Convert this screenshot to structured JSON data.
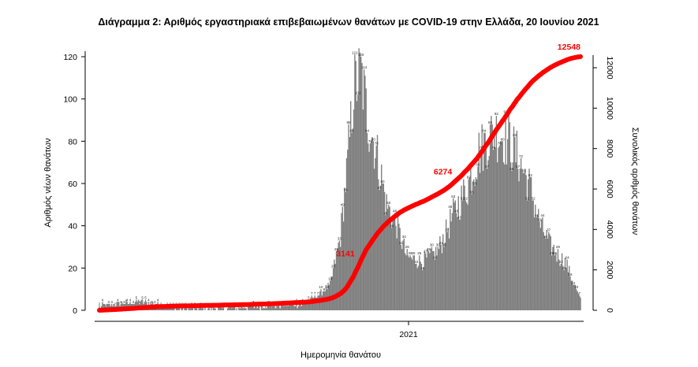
{
  "chart_data": {
    "type": "bar",
    "title": "Διάγραμμα 2: Αριθμός εργαστηριακά επιβεβαιωμένων θανάτων με COVID-19 στην Ελλάδα, 20 Ιουνίου 2021",
    "xlabel": "Ημερομηνία θανάτου",
    "ylabel_left": "Αριθμός νέων θανάτων",
    "ylabel_right": "Συνολικός αριθμός θανάτων",
    "x_tick_label": "2021",
    "ylim_left": [
      0,
      125
    ],
    "yticks_left": [
      "0",
      "20",
      "40",
      "60",
      "80",
      "100",
      "120"
    ],
    "ylim_right": [
      0,
      12500
    ],
    "yticks_right": [
      "0",
      "2000",
      "4000",
      "6000",
      "8000",
      "10000",
      "12000"
    ],
    "bar_color": "#7f7f7f",
    "line_color": "#ff0000",
    "n_days": 470,
    "daily_deaths_profile": [
      [
        0,
        2
      ],
      [
        20,
        3
      ],
      [
        40,
        4
      ],
      [
        80,
        1
      ],
      [
        120,
        1
      ],
      [
        170,
        2
      ],
      [
        200,
        3
      ],
      [
        215,
        8
      ],
      [
        225,
        12
      ],
      [
        235,
        35
      ],
      [
        242,
        70
      ],
      [
        248,
        105
      ],
      [
        255,
        112
      ],
      [
        262,
        90
      ],
      [
        270,
        75
      ],
      [
        280,
        50
      ],
      [
        290,
        40
      ],
      [
        300,
        25
      ],
      [
        315,
        23
      ],
      [
        330,
        28
      ],
      [
        345,
        45
      ],
      [
        360,
        60
      ],
      [
        370,
        75
      ],
      [
        385,
        85
      ],
      [
        400,
        80
      ],
      [
        410,
        70
      ],
      [
        420,
        58
      ],
      [
        430,
        40
      ],
      [
        440,
        30
      ],
      [
        455,
        22
      ],
      [
        469,
        5
      ]
    ],
    "cumulative_annotations": [
      {
        "label": "3141",
        "day": 255
      },
      {
        "label": "6274",
        "day": 350
      },
      {
        "label": "12548",
        "day": 469
      }
    ]
  }
}
